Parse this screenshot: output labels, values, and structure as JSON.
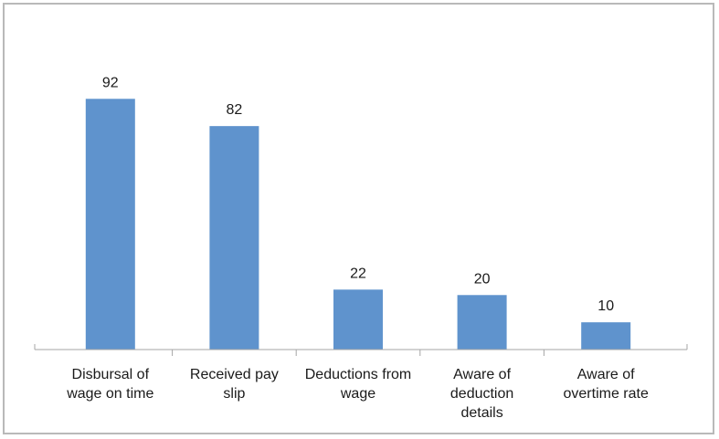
{
  "chart_data": {
    "type": "bar",
    "categories": [
      [
        "Disbursal of",
        "wage on time"
      ],
      [
        "Received pay",
        "slip"
      ],
      [
        "Deductions from",
        "wage"
      ],
      [
        "Aware of",
        "deduction",
        "details"
      ],
      [
        "Aware of",
        "overtime rate"
      ]
    ],
    "values": [
      92,
      82,
      22,
      20,
      10
    ],
    "data_labels": [
      "92",
      "82",
      "22",
      "20",
      "10"
    ],
    "title": "",
    "xlabel": "",
    "ylabel": "",
    "ylim": [
      0,
      100
    ],
    "grid": false,
    "legend": "none",
    "bar_color": "#5f93cd"
  }
}
